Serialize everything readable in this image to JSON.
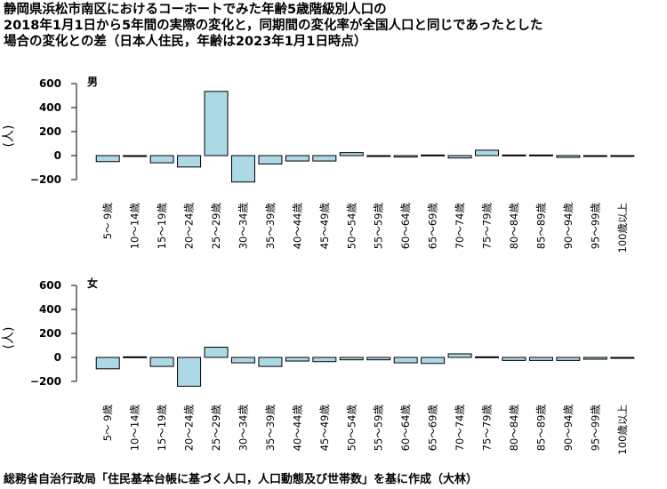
{
  "title": "静岡県浜松市南区におけるコーホートでみた年齢5歳階級別人口の\n2018年1月1日から5年間の実際の変化と，同期間の変化率が全国人口と同じであったとした\n場合の変化との差（日本人住民，年齢は2023年1月1日時点）",
  "source": "総務省自治行政局「住民基本台帳に基づく人口，人口動態及び世帯数」を基に作成（大林）",
  "colors": {
    "bar_fill": "#add8e6",
    "bar_stroke": "#000000"
  },
  "chart_data": [
    {
      "type": "bar",
      "label": "男",
      "ylabel": "(人)",
      "ylim": [
        -200,
        600
      ],
      "yticks": [
        -200,
        0,
        200,
        400,
        600
      ],
      "categories": [
        "5～ 9歳",
        "10～14歳",
        "15～19歳",
        "20～24歳",
        "25～29歳",
        "30～34歳",
        "35～39歳",
        "40～44歳",
        "45～49歳",
        "50～54歳",
        "55～59歳",
        "60～64歳",
        "65～69歳",
        "70～74歳",
        "75～79歳",
        "80～84歳",
        "85～89歳",
        "90～94歳",
        "95～99歳",
        "100歳以上"
      ],
      "values": [
        -50,
        -5,
        -60,
        -95,
        535,
        -220,
        -70,
        -45,
        -45,
        25,
        -3,
        -12,
        5,
        -20,
        45,
        5,
        5,
        -15,
        -2,
        -2
      ]
    },
    {
      "type": "bar",
      "label": "女",
      "ylabel": "(人)",
      "ylim": [
        -200,
        600
      ],
      "yticks": [
        -200,
        0,
        200,
        400,
        600
      ],
      "categories": [
        "5～ 9歳",
        "10～14歳",
        "15～19歳",
        "20～24歳",
        "25～29歳",
        "30～34歳",
        "35～39歳",
        "40～44歳",
        "45～49歳",
        "50～54歳",
        "55～59歳",
        "60～64歳",
        "65～69歳",
        "70～74歳",
        "75～79歳",
        "80～84歳",
        "85～89歳",
        "90～94歳",
        "95～99歳",
        "100歳以上"
      ],
      "values": [
        -95,
        5,
        -75,
        -240,
        85,
        -45,
        -75,
        -30,
        -35,
        -20,
        -20,
        -45,
        -50,
        30,
        5,
        -25,
        -25,
        -25,
        -15,
        -5
      ]
    }
  ]
}
